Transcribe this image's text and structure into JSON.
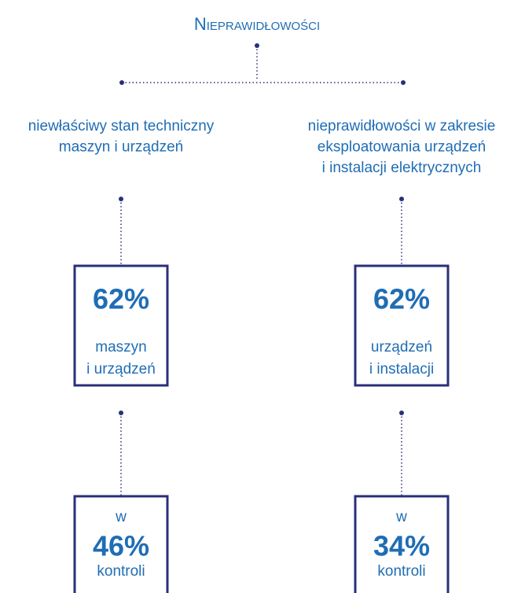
{
  "title": "Nieprawidłowości",
  "branches": [
    {
      "label": [
        "niewłaściwy stan techniczny",
        "maszyn i urządzeń"
      ],
      "share": {
        "value": "62%",
        "text": [
          "maszyn",
          "i urządzeń"
        ]
      },
      "controls": {
        "prefix": "w",
        "value": "46%",
        "suffix": "kontroli"
      }
    },
    {
      "label": [
        "nieprawidłowości w zakresie",
        "eksploatowania urządzeń",
        "i instalacji elektrycznych"
      ],
      "share": {
        "value": "62%",
        "text": [
          "urządzeń",
          "i instalacji"
        ]
      },
      "controls": {
        "prefix": "w",
        "value": "34%",
        "suffix": "kontroli"
      }
    }
  ]
}
